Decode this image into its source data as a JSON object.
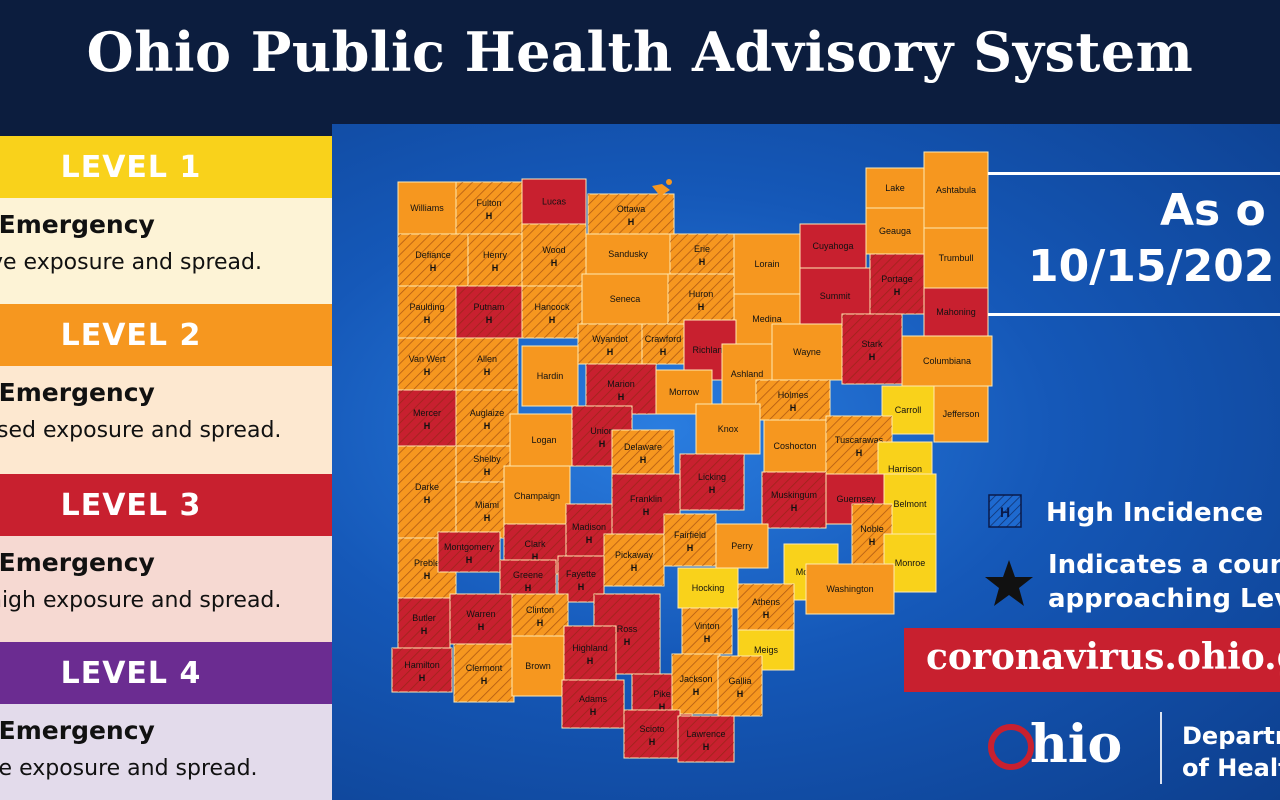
{
  "title": "Ohio Public Health Advisory System",
  "colors": {
    "level1": "#f9d21b",
    "level2": "#f6971f",
    "level3": "#c8202f",
    "level4": "#6b2c91",
    "navy": "#0c1d3e"
  },
  "levels": [
    {
      "heading": "LEVEL 1",
      "line1": "lic Emergency",
      "line2": "ve exposure and spread.",
      "head_color": "#f9d21b",
      "body_color": "#fdf3d6"
    },
    {
      "heading": "LEVEL 2",
      "line1": "lic Emergency",
      "line2": "eased exposure and spread.",
      "head_color": "#f6971f",
      "body_color": "#fde8d0"
    },
    {
      "heading": "LEVEL 3",
      "line1": "lic Emergency",
      "line2": "high exposure and spread.",
      "head_color": "#c8202f",
      "body_color": "#f6d9d2"
    },
    {
      "heading": "LEVEL 4",
      "line1": "lic Emergency",
      "line2": "re exposure and spread.",
      "head_color": "#6b2c91",
      "body_color": "#e3dbeb"
    }
  ],
  "as_of": {
    "label": "As o",
    "date": "10/15/202"
  },
  "key": {
    "high_incidence": "High Incidence",
    "hatch_letter": "H",
    "star_line1": "Indicates a coun",
    "star_line2": "approaching Lev",
    "star_icon": "star-icon"
  },
  "url": "coronavirus.ohio.g",
  "logo": {
    "word": "hio",
    "dept_line1": "Departm",
    "dept_line2": "of Healt"
  },
  "counties": [
    {
      "name": "Williams",
      "level": 2,
      "high": false
    },
    {
      "name": "Fulton",
      "level": 2,
      "high": true
    },
    {
      "name": "Lucas",
      "level": 3,
      "high": false
    },
    {
      "name": "Ottawa",
      "level": 2,
      "high": true
    },
    {
      "name": "Defiance",
      "level": 2,
      "high": true
    },
    {
      "name": "Henry",
      "level": 2,
      "high": true
    },
    {
      "name": "Wood",
      "level": 2,
      "high": true
    },
    {
      "name": "Sandusky",
      "level": 2,
      "high": false
    },
    {
      "name": "Erie",
      "level": 2,
      "high": true
    },
    {
      "name": "Lorain",
      "level": 2,
      "high": false
    },
    {
      "name": "Cuyahoga",
      "level": 3,
      "high": false
    },
    {
      "name": "Lake",
      "level": 2,
      "high": false
    },
    {
      "name": "Geauga",
      "level": 2,
      "high": false
    },
    {
      "name": "Ashtabula",
      "level": 2,
      "high": false
    },
    {
      "name": "Paulding",
      "level": 2,
      "high": true
    },
    {
      "name": "Putnam",
      "level": 3,
      "high": true
    },
    {
      "name": "Hancock",
      "level": 2,
      "high": true
    },
    {
      "name": "Seneca",
      "level": 2,
      "high": false
    },
    {
      "name": "Huron",
      "level": 2,
      "high": true
    },
    {
      "name": "Medina",
      "level": 2,
      "high": false
    },
    {
      "name": "Summit",
      "level": 3,
      "high": false
    },
    {
      "name": "Portage",
      "level": 3,
      "high": true
    },
    {
      "name": "Trumbull",
      "level": 2,
      "high": false
    },
    {
      "name": "Mahoning",
      "level": 3,
      "high": false
    },
    {
      "name": "Van Wert",
      "level": 2,
      "high": true
    },
    {
      "name": "Allen",
      "level": 2,
      "high": true
    },
    {
      "name": "Wyandot",
      "level": 2,
      "high": true
    },
    {
      "name": "Crawford",
      "level": 2,
      "high": true
    },
    {
      "name": "Richland",
      "level": 3,
      "high": false
    },
    {
      "name": "Ashland",
      "level": 2,
      "high": false
    },
    {
      "name": "Wayne",
      "level": 2,
      "high": false
    },
    {
      "name": "Stark",
      "level": 3,
      "high": true
    },
    {
      "name": "Columbiana",
      "level": 2,
      "high": false
    },
    {
      "name": "Mercer",
      "level": 3,
      "high": true
    },
    {
      "name": "Auglaize",
      "level": 2,
      "high": true
    },
    {
      "name": "Hardin",
      "level": 2,
      "high": false
    },
    {
      "name": "Marion",
      "level": 3,
      "high": true
    },
    {
      "name": "Morrow",
      "level": 2,
      "high": false
    },
    {
      "name": "Holmes",
      "level": 2,
      "high": true
    },
    {
      "name": "Carroll",
      "level": 1,
      "high": false
    },
    {
      "name": "Jefferson",
      "level": 2,
      "high": false
    },
    {
      "name": "Shelby",
      "level": 2,
      "high": true
    },
    {
      "name": "Logan",
      "level": 2,
      "high": false
    },
    {
      "name": "Union",
      "level": 3,
      "high": true
    },
    {
      "name": "Delaware",
      "level": 2,
      "high": true
    },
    {
      "name": "Knox",
      "level": 2,
      "high": false
    },
    {
      "name": "Coshocton",
      "level": 2,
      "high": false
    },
    {
      "name": "Tuscarawas",
      "level": 2,
      "high": true
    },
    {
      "name": "Harrison",
      "level": 1,
      "high": false
    },
    {
      "name": "Darke",
      "level": 2,
      "high": true
    },
    {
      "name": "Miami",
      "level": 2,
      "high": true
    },
    {
      "name": "Champaign",
      "level": 2,
      "high": false
    },
    {
      "name": "Licking",
      "level": 3,
      "high": true
    },
    {
      "name": "Muskingum",
      "level": 3,
      "high": true
    },
    {
      "name": "Guernsey",
      "level": 3,
      "high": false
    },
    {
      "name": "Belmont",
      "level": 1,
      "high": false
    },
    {
      "name": "Clark",
      "level": 3,
      "high": true
    },
    {
      "name": "Madison",
      "level": 3,
      "high": true
    },
    {
      "name": "Franklin",
      "level": 3,
      "high": true
    },
    {
      "name": "Preble",
      "level": 2,
      "high": true
    },
    {
      "name": "Montgomery",
      "level": 3,
      "high": true
    },
    {
      "name": "Greene",
      "level": 3,
      "high": true
    },
    {
      "name": "Fayette",
      "level": 3,
      "high": true
    },
    {
      "name": "Pickaway",
      "level": 2,
      "high": true
    },
    {
      "name": "Fairfield",
      "level": 2,
      "high": true
    },
    {
      "name": "Perry",
      "level": 2,
      "high": false
    },
    {
      "name": "Morgan",
      "level": 1,
      "high": false
    },
    {
      "name": "Noble",
      "level": 2,
      "high": true
    },
    {
      "name": "Monroe",
      "level": 1,
      "high": false
    },
    {
      "name": "Butler",
      "level": 3,
      "high": true
    },
    {
      "name": "Warren",
      "level": 3,
      "high": true
    },
    {
      "name": "Clinton",
      "level": 2,
      "high": true
    },
    {
      "name": "Ross",
      "level": 3,
      "high": true
    },
    {
      "name": "Hocking",
      "level": 1,
      "high": false
    },
    {
      "name": "Athens",
      "level": 2,
      "high": true
    },
    {
      "name": "Washington",
      "level": 2,
      "high": false
    },
    {
      "name": "Hamilton",
      "level": 3,
      "high": true
    },
    {
      "name": "Clermont",
      "level": 2,
      "high": true
    },
    {
      "name": "Brown",
      "level": 2,
      "high": false
    },
    {
      "name": "Highland",
      "level": 3,
      "high": true
    },
    {
      "name": "Vinton",
      "level": 2,
      "high": true
    },
    {
      "name": "Meigs",
      "level": 1,
      "high": false
    },
    {
      "name": "Pike",
      "level": 3,
      "high": true
    },
    {
      "name": "Jackson",
      "level": 2,
      "high": true
    },
    {
      "name": "Gallia",
      "level": 2,
      "high": true
    },
    {
      "name": "Adams",
      "level": 3,
      "high": true
    },
    {
      "name": "Scioto",
      "level": 3,
      "high": true
    },
    {
      "name": "Lawrence",
      "level": 3,
      "high": true
    }
  ]
}
